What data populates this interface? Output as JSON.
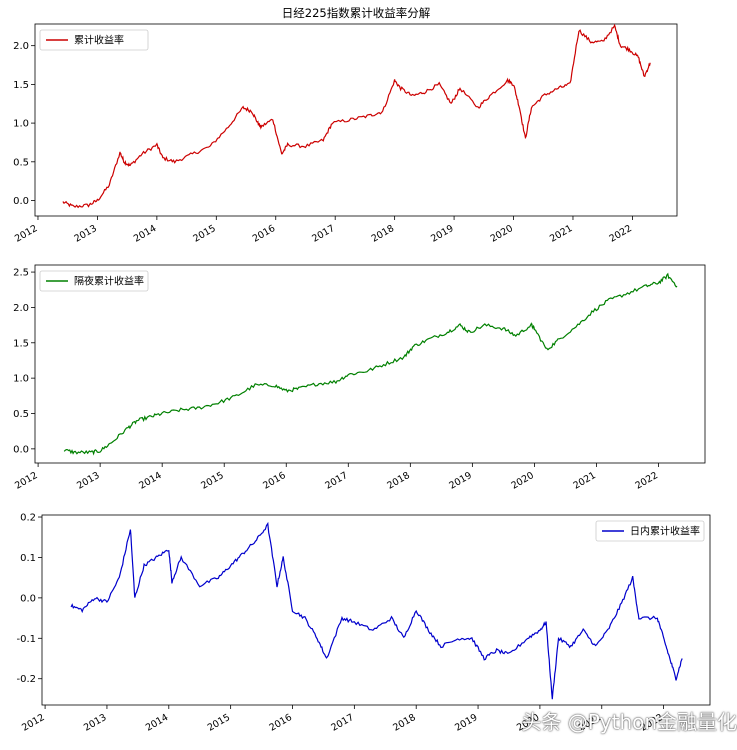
{
  "chart_data": [
    {
      "type": "line",
      "title": "日经225指数累计收益率分解",
      "xlabel": "",
      "ylabel": "",
      "x_ticks": [
        "2012",
        "2013",
        "2014",
        "2015",
        "2016",
        "2017",
        "2018",
        "2019",
        "2020",
        "2021",
        "2022"
      ],
      "y_ticks": [
        "0.0",
        "0.5",
        "1.0",
        "1.5",
        "2.0"
      ],
      "ylim": [
        -0.2,
        2.28
      ],
      "legend": "top-left",
      "grid": false,
      "series": [
        {
          "name": "累计收益率",
          "color": "#cc0000",
          "x": [
            2012.42,
            2012.6,
            2012.85,
            2013.0,
            2013.2,
            2013.38,
            2013.45,
            2013.55,
            2013.75,
            2014.0,
            2014.1,
            2014.3,
            2014.6,
            2014.9,
            2015.2,
            2015.45,
            2015.6,
            2015.7,
            2015.75,
            2015.95,
            2016.1,
            2016.2,
            2016.5,
            2016.8,
            2016.95,
            2017.3,
            2017.6,
            2017.8,
            2018.0,
            2018.1,
            2018.3,
            2018.5,
            2018.75,
            2018.95,
            2019.1,
            2019.4,
            2019.6,
            2019.9,
            2020.0,
            2020.1,
            2020.2,
            2020.3,
            2020.5,
            2020.75,
            2020.95,
            2021.1,
            2021.3,
            2021.5,
            2021.7,
            2021.8,
            2021.95,
            2022.1,
            2022.2,
            2022.3
          ],
          "values": [
            -0.02,
            -0.08,
            -0.06,
            0.0,
            0.2,
            0.62,
            0.5,
            0.45,
            0.6,
            0.72,
            0.55,
            0.5,
            0.6,
            0.7,
            0.95,
            1.2,
            1.15,
            1.0,
            0.95,
            1.05,
            0.6,
            0.72,
            0.7,
            0.78,
            1.0,
            1.05,
            1.1,
            1.15,
            1.55,
            1.45,
            1.35,
            1.4,
            1.5,
            1.25,
            1.45,
            1.2,
            1.35,
            1.55,
            1.5,
            1.2,
            0.8,
            1.2,
            1.35,
            1.45,
            1.5,
            2.2,
            2.05,
            2.05,
            2.25,
            2.0,
            1.95,
            1.85,
            1.6,
            1.78
          ]
        }
      ]
    },
    {
      "type": "line",
      "title": "",
      "xlabel": "",
      "ylabel": "",
      "x_ticks": [
        "2012",
        "2013",
        "2014",
        "2015",
        "2016",
        "2017",
        "2018",
        "2019",
        "2020",
        "2021",
        "2022"
      ],
      "y_ticks": [
        "0.0",
        "0.5",
        "1.0",
        "1.5",
        "2.0",
        "2.5"
      ],
      "ylim": [
        -0.2,
        2.6
      ],
      "legend": "top-left",
      "grid": false,
      "series": [
        {
          "name": "隔夜累计收益率",
          "color": "#008000",
          "x": [
            2012.42,
            2012.6,
            2012.85,
            2013.0,
            2013.2,
            2013.45,
            2013.6,
            2013.8,
            2014.0,
            2014.3,
            2014.6,
            2014.9,
            2015.2,
            2015.5,
            2015.8,
            2016.0,
            2016.2,
            2016.5,
            2016.8,
            2017.0,
            2017.3,
            2017.6,
            2017.9,
            2018.05,
            2018.3,
            2018.6,
            2018.8,
            2018.95,
            2019.2,
            2019.5,
            2019.7,
            2019.95,
            2020.0,
            2020.2,
            2020.4,
            2020.7,
            2020.95,
            2021.2,
            2021.5,
            2021.8,
            2022.0,
            2022.15,
            2022.3
          ],
          "values": [
            -0.02,
            -0.05,
            -0.05,
            -0.03,
            0.1,
            0.3,
            0.4,
            0.45,
            0.5,
            0.55,
            0.58,
            0.65,
            0.75,
            0.9,
            0.9,
            0.82,
            0.85,
            0.92,
            0.95,
            1.05,
            1.1,
            1.2,
            1.3,
            1.45,
            1.55,
            1.65,
            1.75,
            1.65,
            1.75,
            1.7,
            1.6,
            1.75,
            1.7,
            1.4,
            1.55,
            1.75,
            1.95,
            2.1,
            2.2,
            2.3,
            2.35,
            2.45,
            2.3
          ]
        }
      ]
    },
    {
      "type": "line",
      "title": "",
      "xlabel": "",
      "ylabel": "",
      "x_ticks": [
        "2012",
        "2013",
        "2014",
        "2015",
        "2016",
        "2017",
        "2018",
        "2019",
        "2020",
        "2021",
        "2022"
      ],
      "y_ticks": [
        "0.2",
        "0.1",
        "0.0",
        "-0.1",
        "-0.2"
      ],
      "ylim": [
        -0.265,
        0.205
      ],
      "legend": "top-right",
      "grid": false,
      "series": [
        {
          "name": "日内累计收益率",
          "color": "#0000cc",
          "x": [
            2012.42,
            2012.6,
            2012.8,
            2013.0,
            2013.2,
            2013.38,
            2013.45,
            2013.6,
            2013.8,
            2014.0,
            2014.05,
            2014.2,
            2014.5,
            2014.8,
            2015.0,
            2015.2,
            2015.4,
            2015.6,
            2015.75,
            2015.85,
            2016.0,
            2016.2,
            2016.4,
            2016.55,
            2016.8,
            2017.0,
            2017.3,
            2017.6,
            2017.8,
            2018.0,
            2018.2,
            2018.4,
            2018.7,
            2018.9,
            2019.1,
            2019.3,
            2019.5,
            2019.8,
            2020.0,
            2020.1,
            2020.2,
            2020.3,
            2020.5,
            2020.7,
            2020.9,
            2021.1,
            2021.3,
            2021.5,
            2021.6,
            2021.9,
            2022.0,
            2022.1,
            2022.2,
            2022.3
          ],
          "values": [
            -0.02,
            -0.03,
            0.0,
            -0.01,
            0.05,
            0.17,
            0.0,
            0.08,
            0.1,
            0.12,
            0.04,
            0.1,
            0.03,
            0.05,
            0.08,
            0.11,
            0.14,
            0.18,
            0.03,
            0.1,
            -0.03,
            -0.05,
            -0.1,
            -0.15,
            -0.05,
            -0.06,
            -0.08,
            -0.05,
            -0.1,
            -0.03,
            -0.08,
            -0.12,
            -0.1,
            -0.1,
            -0.15,
            -0.13,
            -0.14,
            -0.1,
            -0.08,
            -0.06,
            -0.25,
            -0.1,
            -0.12,
            -0.08,
            -0.12,
            -0.08,
            -0.02,
            0.05,
            -0.05,
            -0.05,
            -0.1,
            -0.15,
            -0.2,
            -0.15
          ]
        }
      ]
    }
  ],
  "watermark": {
    "text": "头条 @Python金融量化"
  }
}
